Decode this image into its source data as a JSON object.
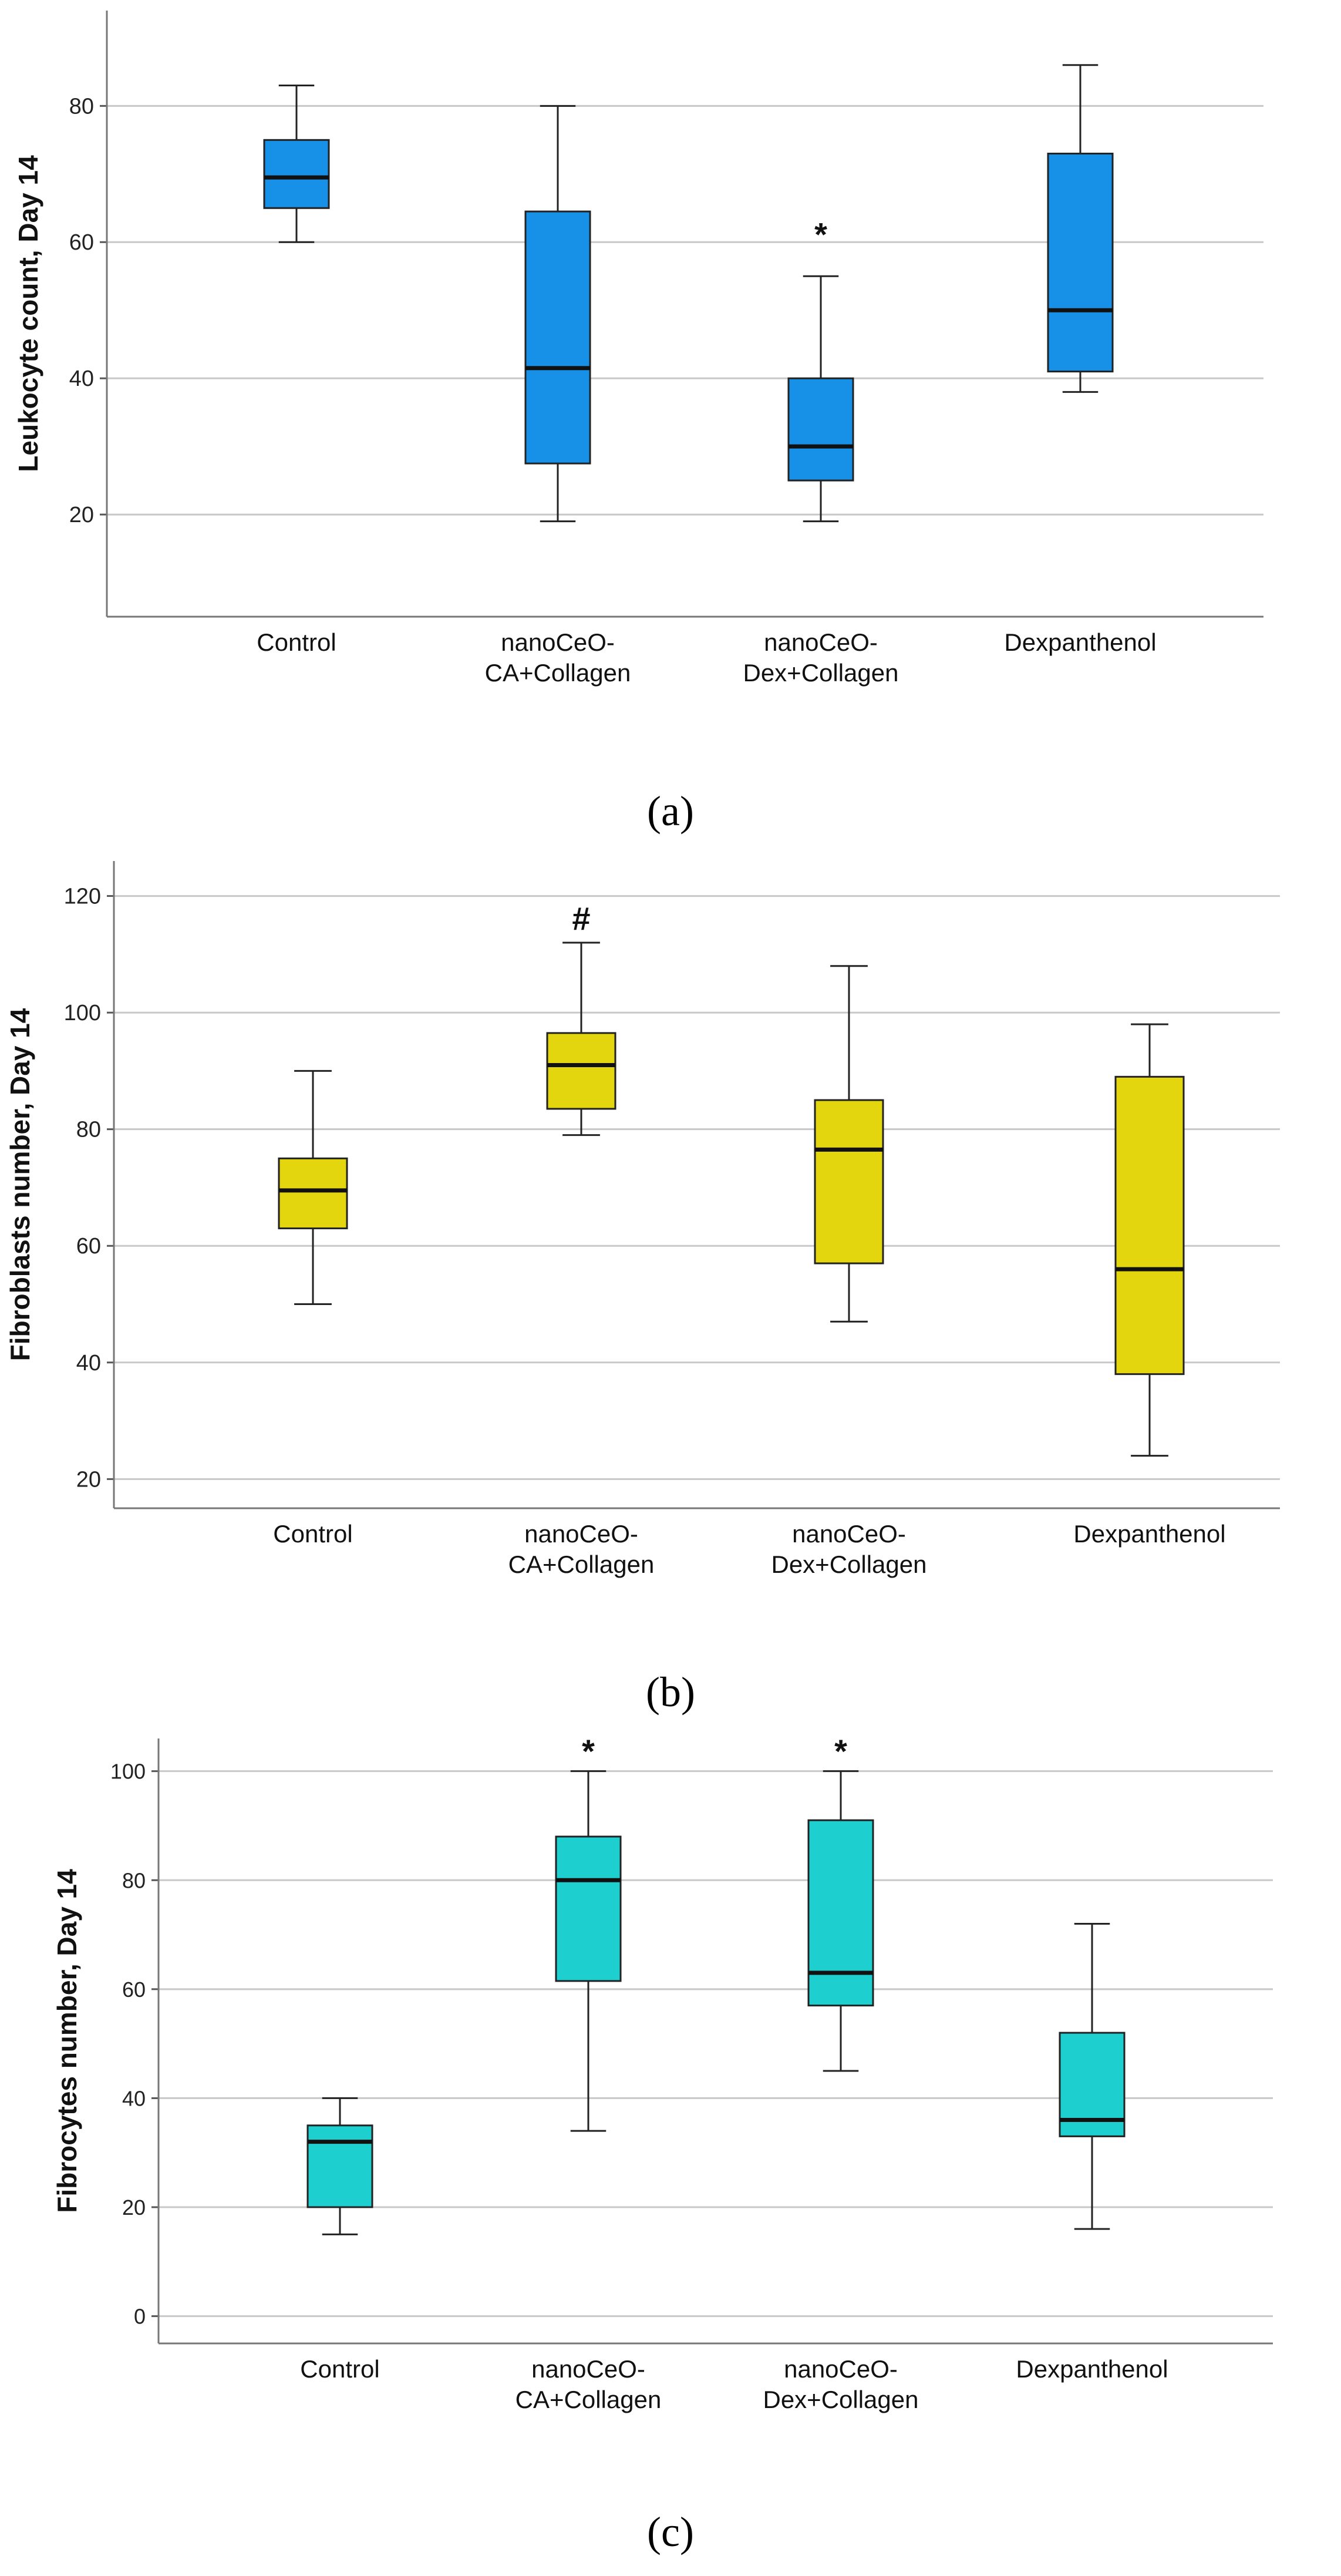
{
  "figure": {
    "captions": [
      "(a)",
      "(b)",
      "(c)"
    ]
  },
  "chart_data": [
    {
      "type": "box",
      "panel": "a",
      "ylabel": "Leukocyte count, Day 14",
      "xlabel": "",
      "categories": [
        "Control",
        "nanoCeO-\nCA+Collagen",
        "nanoCeO-\nDex+Collagen",
        "Dexpanthenol"
      ],
      "ylim": [
        5,
        94
      ],
      "yticks": [
        20,
        40,
        60,
        80
      ],
      "grid": true,
      "box_color": "#1790e8",
      "boxes": [
        {
          "min": 60,
          "q1": 65,
          "median": 69.5,
          "q3": 75,
          "max": 83
        },
        {
          "min": 19,
          "q1": 27.5,
          "median": 41.5,
          "q3": 64.5,
          "max": 80
        },
        {
          "min": 19,
          "q1": 25,
          "median": 30,
          "q3": 40,
          "max": 55
        },
        {
          "min": 38,
          "q1": 41,
          "median": 50,
          "q3": 73,
          "max": 86
        }
      ],
      "annotations": [
        {
          "category_index": 2,
          "text": "*",
          "y": 61
        }
      ]
    },
    {
      "type": "box",
      "panel": "b",
      "ylabel": "Fibroblasts number, Day 14",
      "xlabel": "",
      "categories": [
        "Control",
        "nanoCeO-\nCA+Collagen",
        "nanoCeO-\nDex+Collagen",
        "Dexpanthenol"
      ],
      "ylim": [
        15,
        126
      ],
      "yticks": [
        20,
        40,
        60,
        80,
        100,
        120
      ],
      "grid": true,
      "box_color": "#e3d60e",
      "boxes": [
        {
          "min": 50,
          "q1": 63,
          "median": 69.5,
          "q3": 75,
          "max": 90
        },
        {
          "min": 79,
          "q1": 83.5,
          "median": 91,
          "q3": 96.5,
          "max": 112
        },
        {
          "min": 47,
          "q1": 57,
          "median": 76.5,
          "q3": 85,
          "max": 108
        },
        {
          "min": 24,
          "q1": 38,
          "median": 56,
          "q3": 89,
          "max": 98
        }
      ],
      "annotations": [
        {
          "category_index": 1,
          "text": "#",
          "y": 116
        }
      ]
    },
    {
      "type": "box",
      "panel": "c",
      "ylabel": "Fibrocytes number, Day 14",
      "xlabel": "",
      "categories": [
        "Control",
        "nanoCeO-\nCA+Collagen",
        "nanoCeO-\nDex+Collagen",
        "Dexpanthenol"
      ],
      "ylim": [
        -5,
        106
      ],
      "yticks": [
        0,
        20,
        40,
        60,
        80,
        100
      ],
      "grid": true,
      "box_color": "#1dd0cf",
      "boxes": [
        {
          "min": 15,
          "q1": 20,
          "median": 32,
          "q3": 35,
          "max": 40
        },
        {
          "min": 34,
          "q1": 61.5,
          "median": 80,
          "q3": 88,
          "max": 100
        },
        {
          "min": 45,
          "q1": 57,
          "median": 63,
          "q3": 91,
          "max": 100
        },
        {
          "min": 16,
          "q1": 33,
          "median": 36,
          "q3": 52,
          "max": 72
        }
      ],
      "annotations": [
        {
          "category_index": 1,
          "text": "*",
          "y": 103.5
        },
        {
          "category_index": 2,
          "text": "*",
          "y": 103.5
        }
      ]
    }
  ]
}
